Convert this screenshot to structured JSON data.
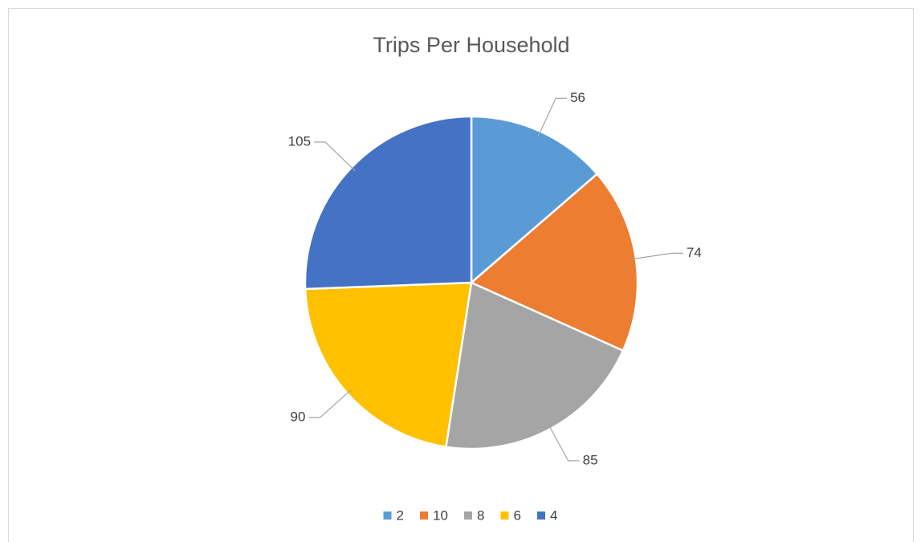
{
  "chart_data": {
    "type": "pie",
    "title": "Trips Per Household",
    "categories": [
      "2",
      "10",
      "8",
      "6",
      "4"
    ],
    "values": [
      56,
      74,
      85,
      90,
      105
    ],
    "colors": [
      "#5b9bd5",
      "#ed7d31",
      "#a5a5a5",
      "#ffc000",
      "#4472c4"
    ],
    "legend": "bottom"
  }
}
